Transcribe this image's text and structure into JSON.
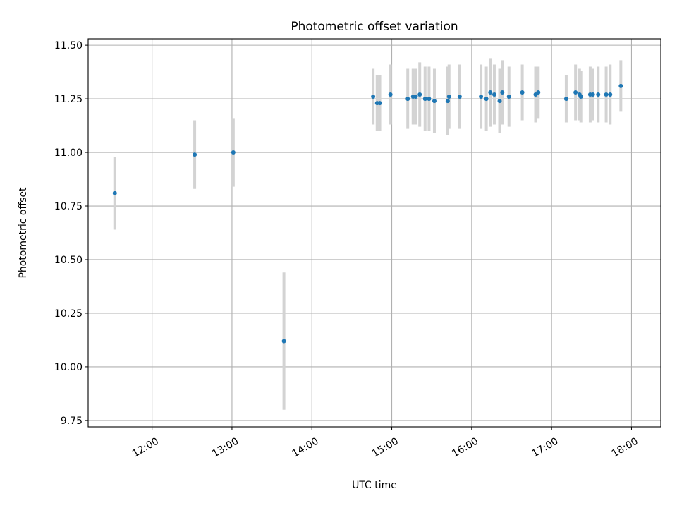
{
  "chart_data": {
    "type": "scatter",
    "title": "Photometric offset variation",
    "xlabel": "UTC time",
    "ylabel": "Photometric offset",
    "x_ticks": [
      "12:00",
      "13:00",
      "14:00",
      "15:00",
      "16:00",
      "17:00",
      "18:00"
    ],
    "y_ticks": [
      "9.75",
      "10.00",
      "10.25",
      "10.50",
      "10.75",
      "11.00",
      "11.25",
      "11.50"
    ],
    "xlim": [
      "11:12",
      "18:22"
    ],
    "ylim": [
      9.72,
      11.53
    ],
    "grid": true,
    "colors": {
      "point": "#1f77b4",
      "errorbar": "#d3d3d3",
      "grid": "#b0b0b0"
    },
    "series": [
      {
        "points": [
          {
            "x": "11:32",
            "y": 10.81,
            "err": 0.17
          },
          {
            "x": "12:32",
            "y": 10.99,
            "err": 0.16
          },
          {
            "x": "13:01",
            "y": 11.0,
            "err": 0.16
          },
          {
            "x": "13:39",
            "y": 10.12,
            "err": 0.32
          },
          {
            "x": "14:46",
            "y": 11.26,
            "err": 0.13
          },
          {
            "x": "14:49",
            "y": 11.23,
            "err": 0.13
          },
          {
            "x": "14:51",
            "y": 11.23,
            "err": 0.13
          },
          {
            "x": "14:59",
            "y": 11.27,
            "err": 0.14
          },
          {
            "x": "15:12",
            "y": 11.25,
            "err": 0.14
          },
          {
            "x": "15:16",
            "y": 11.26,
            "err": 0.13
          },
          {
            "x": "15:18",
            "y": 11.26,
            "err": 0.13
          },
          {
            "x": "15:21",
            "y": 11.27,
            "err": 0.15
          },
          {
            "x": "15:25",
            "y": 11.25,
            "err": 0.15
          },
          {
            "x": "15:28",
            "y": 11.25,
            "err": 0.15
          },
          {
            "x": "15:32",
            "y": 11.24,
            "err": 0.15
          },
          {
            "x": "15:42",
            "y": 11.24,
            "err": 0.16
          },
          {
            "x": "15:43",
            "y": 11.26,
            "err": 0.15
          },
          {
            "x": "15:51",
            "y": 11.26,
            "err": 0.15
          },
          {
            "x": "16:07",
            "y": 11.26,
            "err": 0.15
          },
          {
            "x": "16:11",
            "y": 11.25,
            "err": 0.15
          },
          {
            "x": "16:14",
            "y": 11.28,
            "err": 0.16
          },
          {
            "x": "16:17",
            "y": 11.27,
            "err": 0.14
          },
          {
            "x": "16:21",
            "y": 11.24,
            "err": 0.15
          },
          {
            "x": "16:23",
            "y": 11.28,
            "err": 0.15
          },
          {
            "x": "16:28",
            "y": 11.26,
            "err": 0.14
          },
          {
            "x": "16:38",
            "y": 11.28,
            "err": 0.13
          },
          {
            "x": "16:48",
            "y": 11.27,
            "err": 0.13
          },
          {
            "x": "16:50",
            "y": 11.28,
            "err": 0.12
          },
          {
            "x": "17:11",
            "y": 11.25,
            "err": 0.11
          },
          {
            "x": "17:18",
            "y": 11.28,
            "err": 0.13
          },
          {
            "x": "17:21",
            "y": 11.27,
            "err": 0.12
          },
          {
            "x": "17:22",
            "y": 11.26,
            "err": 0.12
          },
          {
            "x": "17:29",
            "y": 11.27,
            "err": 0.13
          },
          {
            "x": "17:31",
            "y": 11.27,
            "err": 0.12
          },
          {
            "x": "17:35",
            "y": 11.27,
            "err": 0.13
          },
          {
            "x": "17:41",
            "y": 11.27,
            "err": 0.13
          },
          {
            "x": "17:44",
            "y": 11.27,
            "err": 0.14
          },
          {
            "x": "17:52",
            "y": 11.31,
            "err": 0.12
          }
        ]
      }
    ]
  }
}
